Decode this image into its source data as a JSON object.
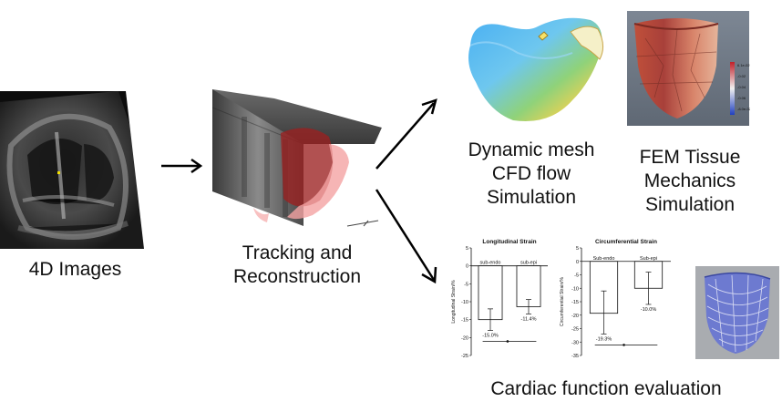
{
  "captions": {
    "images": "4D Images",
    "tracking": [
      "Tracking and",
      "Reconstruction"
    ],
    "cfd": [
      "Dynamic mesh",
      "CFD flow",
      "Simulation"
    ],
    "fem": [
      "FEM Tissue",
      "Mechanics",
      "Simulation"
    ],
    "cardiac": "Cardiac function evaluation"
  },
  "colorbar_labels": [
    "6.1e-02",
    "-0.02",
    "-0.04",
    "-0.06",
    "-8.0e-02"
  ],
  "chart_data": [
    {
      "type": "bar",
      "title": "Longitudinal Strain",
      "ylabel": "Longitudinal Strain/%",
      "categories": [
        "sub-endo",
        "sub-epi"
      ],
      "values": [
        -15.0,
        -11.4
      ],
      "value_labels": [
        "-15.0%",
        "-11.4%"
      ],
      "error_low": [
        -12.0,
        -9.4
      ],
      "error_high": [
        -18.0,
        -13.4
      ],
      "ylim": [
        -25,
        5
      ],
      "yticks": [
        "5",
        "0",
        "-5",
        "-10",
        "-15",
        "-20",
        "-25"
      ],
      "ytick_values": [
        5,
        0,
        -5,
        -10,
        -15,
        -20,
        -25
      ]
    },
    {
      "type": "bar",
      "title": "Circumferential Strain",
      "ylabel": "Circumferential Strain/%",
      "categories": [
        "Sub-endo",
        "Sub-epi"
      ],
      "values": [
        -19.3,
        -10.0
      ],
      "value_labels": [
        "-19.3%",
        "-10.0%"
      ],
      "error_low": [
        -11.0,
        -4.0
      ],
      "error_high": [
        -27.0,
        -16.0
      ],
      "ylim": [
        -35,
        5
      ],
      "yticks": [
        "5",
        "0",
        "-5",
        "-10",
        "-15",
        "-20",
        "-25",
        "-30",
        "-35"
      ],
      "ytick_values": [
        5,
        0,
        -5,
        -10,
        -15,
        -20,
        -25,
        -30,
        -35
      ]
    }
  ]
}
